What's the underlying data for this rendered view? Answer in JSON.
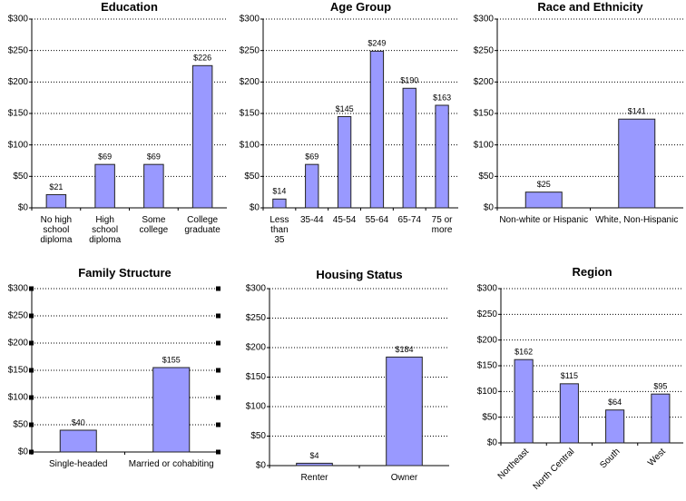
{
  "chart_data": [
    {
      "type": "bar",
      "title": "Education",
      "categories": [
        "No high school diploma",
        "High school diploma",
        "Some college",
        "College graduate"
      ],
      "values": [
        21,
        69,
        69,
        226
      ],
      "value_labels": [
        "$21",
        "$69",
        "$69",
        "$226"
      ],
      "color": "#9999ff",
      "ylim": [
        0,
        300
      ],
      "yticks": [
        {
          "value": 0,
          "label": "$0"
        },
        {
          "value": 50,
          "label": "$50"
        },
        {
          "value": 100,
          "label": "$100"
        },
        {
          "value": 150,
          "label": "$150"
        },
        {
          "value": 200,
          "label": "$200"
        },
        {
          "value": 250,
          "label": "$250"
        },
        {
          "value": 300,
          "label": "$300"
        }
      ],
      "grid": true
    },
    {
      "type": "bar",
      "title": "Age Group",
      "categories": [
        "Less than 35",
        "35-44",
        "45-54",
        "55-64",
        "65-74",
        "75 or more"
      ],
      "values": [
        14,
        69,
        145,
        249,
        190,
        163
      ],
      "value_labels": [
        "$14",
        "$69",
        "$145",
        "$249",
        "$190",
        "$163"
      ],
      "color": "#9999ff",
      "ylim": [
        0,
        300
      ],
      "yticks": [
        {
          "value": 0,
          "label": "$0"
        },
        {
          "value": 50,
          "label": "$50"
        },
        {
          "value": 100,
          "label": "$100"
        },
        {
          "value": 150,
          "label": "$150"
        },
        {
          "value": 200,
          "label": "$200"
        },
        {
          "value": 250,
          "label": "$250"
        },
        {
          "value": 300,
          "label": "$300"
        }
      ],
      "grid": true
    },
    {
      "type": "bar",
      "title": "Race and Ethnicity",
      "categories": [
        "Non-white or Hispanic",
        "White, Non-Hispanic"
      ],
      "values": [
        25,
        141
      ],
      "value_labels": [
        "$25",
        "$141"
      ],
      "color": "#9999ff",
      "ylim": [
        0,
        300
      ],
      "yticks": [
        {
          "value": 0,
          "label": "$0"
        },
        {
          "value": 50,
          "label": "$50"
        },
        {
          "value": 100,
          "label": "$100"
        },
        {
          "value": 150,
          "label": "$150"
        },
        {
          "value": 200,
          "label": "$200"
        },
        {
          "value": 250,
          "label": "$250"
        },
        {
          "value": 300,
          "label": "$300"
        }
      ],
      "grid": true
    },
    {
      "type": "bar",
      "title": "Family Structure",
      "categories": [
        "Single-headed",
        "Married or cohabiting"
      ],
      "values": [
        40,
        155
      ],
      "value_labels": [
        "$40",
        "$155"
      ],
      "color": "#9999ff",
      "ylim": [
        0,
        300
      ],
      "yticks": [
        {
          "value": 0,
          "label": "$0"
        },
        {
          "value": 50,
          "label": "$50"
        },
        {
          "value": 100,
          "label": "$100"
        },
        {
          "value": 150,
          "label": "$150"
        },
        {
          "value": 200,
          "label": "$200"
        },
        {
          "value": 250,
          "label": "$250"
        },
        {
          "value": 300,
          "label": "$300"
        }
      ],
      "grid": true
    },
    {
      "type": "bar",
      "title": "Housing Status",
      "categories": [
        "Renter",
        "Owner"
      ],
      "values": [
        4,
        184
      ],
      "value_labels": [
        "$4",
        "$184"
      ],
      "color": "#9999ff",
      "ylim": [
        0,
        300
      ],
      "yticks": [
        {
          "value": 0,
          "label": "$0"
        },
        {
          "value": 50,
          "label": "$50"
        },
        {
          "value": 100,
          "label": "$100"
        },
        {
          "value": 150,
          "label": "$150"
        },
        {
          "value": 200,
          "label": "$200"
        },
        {
          "value": 250,
          "label": "$250"
        },
        {
          "value": 300,
          "label": "$300"
        }
      ],
      "grid": true
    },
    {
      "type": "bar",
      "title": "Region",
      "categories": [
        "Northeast",
        "North Central",
        "South",
        "West"
      ],
      "values": [
        162,
        115,
        64,
        95
      ],
      "value_labels": [
        "$162",
        "$115",
        "$64",
        "$95"
      ],
      "color": "#9999ff",
      "ylim": [
        0,
        300
      ],
      "yticks": [
        {
          "value": 0,
          "label": "$0"
        },
        {
          "value": 50,
          "label": "$50"
        },
        {
          "value": 100,
          "label": "$100"
        },
        {
          "value": 150,
          "label": "$150"
        },
        {
          "value": 200,
          "label": "$200"
        },
        {
          "value": 250,
          "label": "$250"
        },
        {
          "value": 300,
          "label": "$300"
        }
      ],
      "grid": true
    }
  ]
}
